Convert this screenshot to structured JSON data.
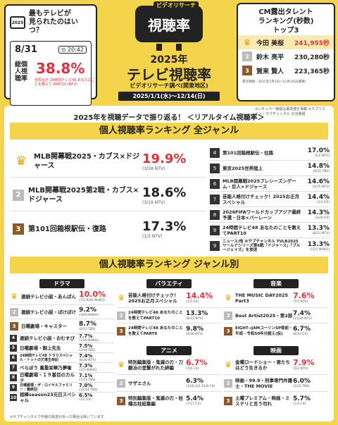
{
  "left_card": {
    "tv_label": "2025",
    "title_line1": "最もテレビが",
    "title_line2": "見られたのはいつ？",
    "date": "8/31",
    "time": "⊙ 20:42",
    "label": "総個人視聴率",
    "value": "38.8%",
    "note": "全局合計 24時間テレビ48 あなたのことを教えて PART10 (NTV)"
  },
  "logo": {
    "small": "ビデオリサーチ",
    "text": "視聴率"
  },
  "header": {
    "year": "2025年",
    "title": "テレビ視聴率",
    "subtitle": "ビデオリサーチ調べ(関東地区)",
    "period": "2025/1/1(水)〜12/14(日)"
  },
  "right_card": {
    "title_line1": "CM露出タレント",
    "title_line2": "ランキング(秒数)",
    "title_line3": "トップ3",
    "items": [
      {
        "rank": "♛",
        "name": "今田 美桜",
        "value": "241,955秒"
      },
      {
        "rank": "2",
        "name": "鈴木 亮平",
        "value": "230,280秒"
      },
      {
        "rank": "3",
        "name": "賀来 賢人",
        "value": "223,365秒"
      }
    ],
    "note": "累計期間：2025年1月1日〜11月16日(関東)"
  },
  "panel": {
    "note": "※レギュラー番組は最高値を掲載 ※スプリエイン・サブチャンネル の当番組",
    "intro": "2025年を視聴データで振り返る！ ＜リアルタイム視聴率＞",
    "banner1": "個人視聴率ランキング 全ジャンル",
    "banner2": "個人視聴率ランキング ジャンル別",
    "footnote": "※サブチャンネルで中継の放送があった場合は除いています"
  },
  "top3": [
    {
      "rank": "♛",
      "name": "MLB開幕戦2025・カブス×ドジャース",
      "value": "19.9%",
      "sub": "(3/18 NTV)"
    },
    {
      "rank": "2",
      "name": "MLB開幕戦2025第2戦・カブス×ドジャース",
      "value": "18.6%",
      "sub": "(3/19 NTV)"
    },
    {
      "rank": "3",
      "name": "第101回箱根駅伝・復路",
      "value": "17.3%",
      "sub": "(1/3 NTV)"
    }
  ],
  "rest": [
    {
      "rank": "4",
      "name": "第101回箱根駅伝・往路",
      "value": "17.0%",
      "sub": "(1/2 NTV)"
    },
    {
      "rank": "5",
      "name": "東京2025世界陸上",
      "value": "14.8%",
      "sub": "(9/21 TBS)"
    },
    {
      "rank": "6",
      "name": "MLB開幕戦2025プレシーズンゲーム・巨人×ドジャース",
      "value": "14.6%",
      "sub": "(3/15 NTV)"
    },
    {
      "rank": "7",
      "name": "芸能人格付けチェック！2025お正月スペシャル",
      "value": "14.4%",
      "sub": "(1/1 EX)"
    },
    {
      "rank": "8",
      "name": "2026FIFAワールドカップアジア最終予選・日本×バーレーン",
      "value": "14.3%",
      "sub": "(3/20 EX)"
    },
    {
      "rank": "9",
      "name": "24時間テレビ48 あなたのことを教えてPART10",
      "value": "13.3%",
      "sub": "(8/31 NTV)"
    },
    {
      "rank": "9",
      "name": "ニュース/他 ※サブチャンネル TVLB2025ワールドシリーズ第6戦「ドジャース」「ブルージェイズ」を放送",
      "value": "13.3%",
      "sub": "(11/1 NHKG)"
    }
  ],
  "genres": [
    {
      "category": "ドラマ",
      "items": [
        {
          "rank": "♛",
          "name": "連続テレビ小説・あんぱん",
          "value": "10.0%",
          "sub": "(7/2,9/26 NHKG)"
        },
        {
          "rank": "2",
          "name": "連続テレビ小説・ばけばけ",
          "value": "9.2%",
          "sub": "(10/9 NHKG)"
        },
        {
          "rank": "3",
          "name": "日曜劇場・キャスター",
          "value": "8.7%",
          "sub": "(4/13 TBS)"
        },
        {
          "rank": "4",
          "name": "連続テレビ小説・おむすび",
          "value": "7.7%",
          "sub": "(1/20 NHKG)"
        },
        {
          "rank": "5",
          "name": "日曜劇場・御上先生",
          "value": "7.5%",
          "sub": "(1/19 TBS)"
        },
        {
          "rank": "6",
          "name": "24時間テレビ48 ドラマスペシャル・トットの欠落生命記",
          "value": "7.4%",
          "sub": "(8/30 NTV)"
        },
        {
          "rank": "7",
          "name": "べらぼう 蔦重栄華乃夢噺",
          "value": "7.3%",
          "sub": "(1/5 NHKG)"
        },
        {
          "rank": "8",
          "name": "日曜劇場・１９番目のカルテ",
          "value": "7.1%",
          "sub": "(7/13 TBS)"
        },
        {
          "rank": "9",
          "name": "日曜劇場・ザ・ロイヤルファミリー・最終回",
          "value": "7.0%",
          "sub": "(12/14 TBS)"
        },
        {
          "rank": "10",
          "name": "相棒season23元日スペシャル",
          "value": "6.5%",
          "sub": "(1/1 EX)"
        }
      ]
    },
    {
      "category": "バラエティ",
      "items": [
        {
          "rank": "♛",
          "name": "芸能人格付けチェック！2025お正月スペシャル",
          "value": "14.4%",
          "sub": "(1/1 EX)"
        },
        {
          "rank": "2",
          "name": "24時間テレビ48 あなたのことを教えてPART10",
          "value": "13.3%",
          "sub": "(8/31 NTV)"
        },
        {
          "rank": "3",
          "name": "24時間テレビ48 あなたのことを教えてPART9",
          "value": "9.8%",
          "sub": "(8/30 NTV)"
        }
      ]
    },
    {
      "category": "アニメ",
      "items": [
        {
          "rank": "♛",
          "name": "特別編集版・鬼滅の刃・刀鍛冶の里繋がれた絆編",
          "value": "6.7%",
          "sub": "(7/6 CX)"
        },
        {
          "rank": "2",
          "name": "サザエさん",
          "value": "6.3%",
          "sub": "(1/26,2/2,11/9 CX)"
        },
        {
          "rank": "3",
          "name": "特別編集版・鬼滅の刃・柱稽古柱結集編",
          "value": "5.4%",
          "sub": "(7/17 CX)"
        }
      ]
    },
    {
      "category": "音楽",
      "items": [
        {
          "rank": "♛",
          "name": "THE MUSIC DAY2025 Part3",
          "value": "7.6%",
          "sub": "(7/5 NTV)"
        },
        {
          "rank": "2",
          "name": "Best Artist2025・第2部",
          "value": "7.4%",
          "sub": "(11/29 NTV)"
        },
        {
          "rank": "3",
          "name": "EIGHT→JAMコーリンSP桜前・平成・令和50年分超え(仮)",
          "value": "6.7%",
          "sub": "(8/16 EX)"
        }
      ]
    },
    {
      "category": "映画",
      "items": [
        {
          "rank": "♛",
          "name": "金曜ロードショー・君たちはどう生きるか",
          "value": "7.9%",
          "sub": "(5/2 NTV)"
        },
        {
          "rank": "2",
          "name": "映画・99.9・刑事専門弁護士・THE MOVIE",
          "value": "6.0%",
          "sub": "(11/2 TBS)"
        },
        {
          "rank": "3",
          "name": "土曜プレミアム・映画・ミステリと言う勿れ",
          "value": "5.7%",
          "sub": "(1/4 CX)"
        }
      ]
    }
  ]
}
